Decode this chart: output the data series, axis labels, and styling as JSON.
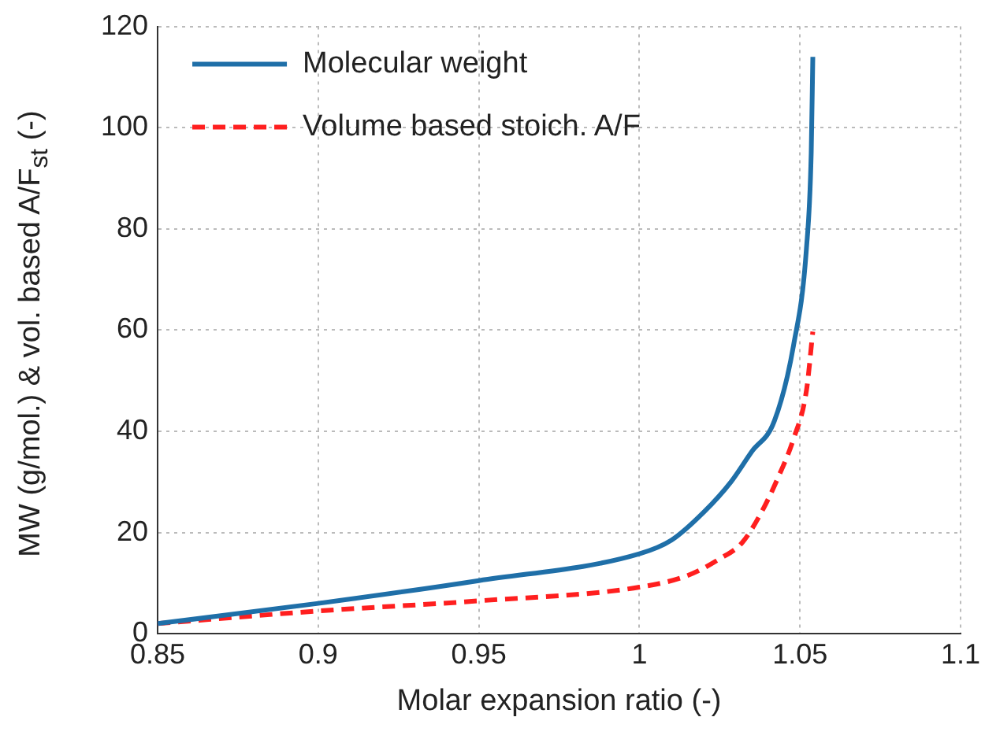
{
  "chart_data": {
    "type": "line",
    "xlabel": "Molar expansion ratio (-)",
    "ylabel": "MW (g/mol.) & vol. based A/F$_{st}$ (-)",
    "xlim": [
      0.85,
      1.1
    ],
    "xticks": [
      0.85,
      0.9,
      0.95,
      1,
      1.05,
      1.1
    ],
    "ylim": [
      0,
      120
    ],
    "yticks": [
      0,
      20,
      40,
      60,
      80,
      100,
      120
    ],
    "grid": true,
    "legend": "top left",
    "marker": "none",
    "series": [
      {
        "name": "Molecular weight",
        "color": "#1f6fa8",
        "line_style": "solid",
        "x": [
          0.85,
          0.9,
          0.95,
          1.0,
          1.01,
          1.02,
          1.0285,
          1.035,
          1.042,
          1.048,
          1.052,
          1.0535,
          1.054
        ],
        "values": [
          2,
          6,
          10.5,
          15.8,
          18.5,
          24,
          30,
          36,
          42,
          57,
          76,
          95,
          114
        ]
      },
      {
        "name": "Volume based stoich. A/F",
        "color": "#ff1f1f",
        "line_style": "dashed",
        "x": [
          0.85,
          0.9,
          0.95,
          1.0,
          1.015,
          1.025,
          1.032,
          1.038,
          1.043,
          1.048,
          1.052,
          1.054
        ],
        "values": [
          2,
          4.5,
          6.5,
          9.2,
          11.5,
          14.8,
          18,
          24,
          30.6,
          38.5,
          48,
          59.7
        ]
      }
    ]
  }
}
